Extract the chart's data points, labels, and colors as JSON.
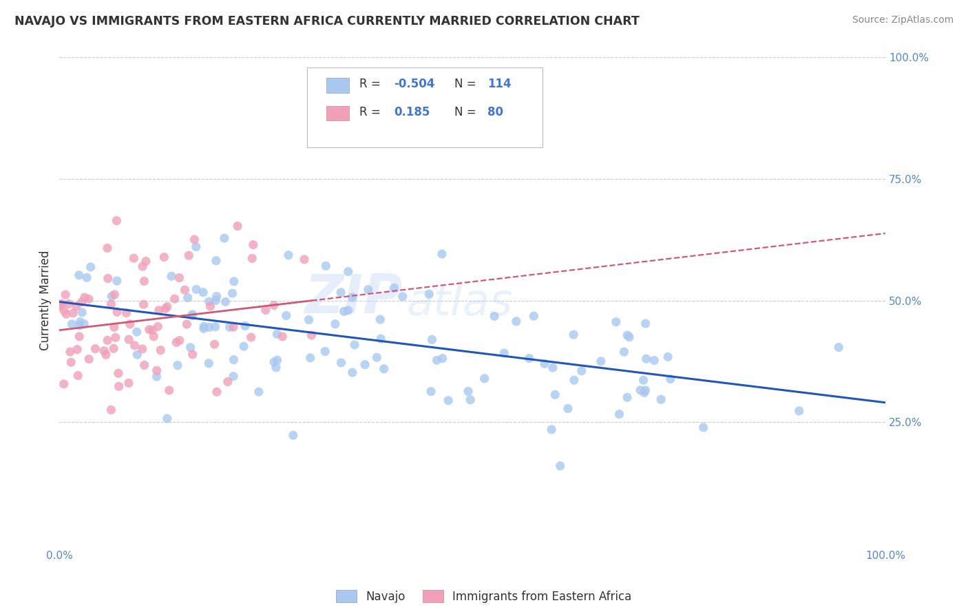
{
  "title": "NAVAJO VS IMMIGRANTS FROM EASTERN AFRICA CURRENTLY MARRIED CORRELATION CHART",
  "source": "Source: ZipAtlas.com",
  "ylabel": "Currently Married",
  "xlim": [
    0,
    1.0
  ],
  "ylim": [
    0,
    1.0
  ],
  "watermark": "ZIPatlas",
  "navajo_R": -0.504,
  "navajo_N": 114,
  "eastafrica_R": 0.185,
  "eastafrica_N": 80,
  "navajo_color": "#a8c8f0",
  "navajo_line_color": "#2255bb",
  "eastafrica_color": "#f0a0b8",
  "eastafrica_line_color": "#d05878",
  "title_color": "#333333",
  "source_color": "#888888",
  "grid_color": "#cccccc",
  "axis_label_color": "#5588cc",
  "background_color": "#ffffff",
  "legend_R_color": "#4477cc",
  "legend_label_color": "#333333",
  "ytick_right": [
    0.25,
    0.5,
    0.75,
    1.0
  ],
  "ytick_right_labels": [
    "25.0%",
    "50.0%",
    "75.0%",
    "100.0%"
  ],
  "xtick_vals": [
    0.0,
    1.0
  ],
  "xtick_labels": [
    "0.0%",
    "100.0%"
  ]
}
